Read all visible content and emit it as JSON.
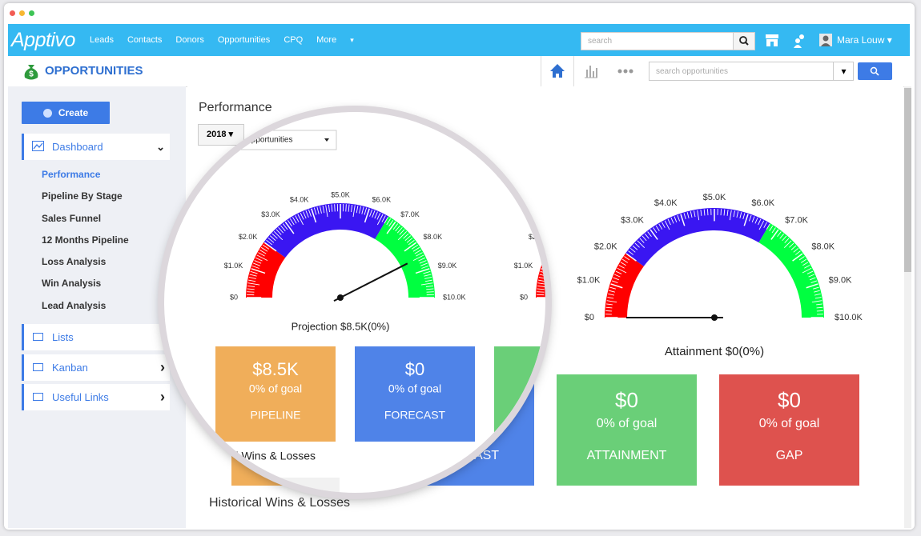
{
  "nav": {
    "logo": "Apptivo",
    "links": [
      "Leads",
      "Contacts",
      "Donors",
      "Opportunities",
      "CPQ",
      "More"
    ],
    "search_placeholder": "search",
    "user": "Mara Louw"
  },
  "app_bar": {
    "title": "OPPORTUNITIES",
    "search_placeholder": "search opportunities"
  },
  "sidebar": {
    "create": "Create",
    "dashboard": "Dashboard",
    "dashboard_items": [
      "Performance",
      "Pipeline By Stage",
      "Sales Funnel",
      "12 Months Pipeline",
      "Loss Analysis",
      "Win Analysis",
      "Lead Analysis"
    ],
    "sections": [
      "Lists",
      "Kanban",
      "Useful Links"
    ]
  },
  "main": {
    "heading": "Performance",
    "filters": [
      "2018",
      "Opportunities"
    ],
    "gauge_lim": [
      0,
      10000
    ],
    "gauge_ticks": [
      {
        "value": 0,
        "label": "$0"
      },
      {
        "value": 1000,
        "label": "$1.0K"
      },
      {
        "value": 2000,
        "label": "$2.0K"
      },
      {
        "value": 3000,
        "label": "$3.0K"
      },
      {
        "value": 4000,
        "label": "$4.0K"
      },
      {
        "value": 5000,
        "label": "$5.0K"
      },
      {
        "value": 6000,
        "label": "$6.0K"
      },
      {
        "value": 7000,
        "label": "$7.0K"
      },
      {
        "value": 8000,
        "label": "$8.0K"
      },
      {
        "value": 9000,
        "label": "$9.0K"
      },
      {
        "value": 10000,
        "label": "$10.0K"
      }
    ],
    "gauge_bands": [
      {
        "from": 0,
        "to": 2000,
        "color": "#ff0000"
      },
      {
        "from": 2000,
        "to": 6700,
        "color": "#3a16f2"
      },
      {
        "from": 6700,
        "to": 10000,
        "color": "#00ff40"
      }
    ],
    "gauges": [
      {
        "label": "Projection $8.5K(0%)",
        "value": 8500
      },
      {
        "label": "Attainment $0(0%)",
        "value": 0
      }
    ],
    "cards": [
      {
        "amount": "$8.5K",
        "goal": "0% of goal",
        "name": "PIPELINE",
        "color": "#f0ae5a"
      },
      {
        "amount": "$0",
        "goal": "0% of goal",
        "name": "FORECAST",
        "color": "#4f83e8"
      },
      {
        "amount": "$0",
        "goal": "0% of goal",
        "name": "ATTAINMENT",
        "color": "#6acf78"
      },
      {
        "amount": "$0",
        "goal": "0% of goal",
        "name": "GAP",
        "color": "#de524e"
      }
    ],
    "section_title": "Historical Wins & Losses"
  }
}
